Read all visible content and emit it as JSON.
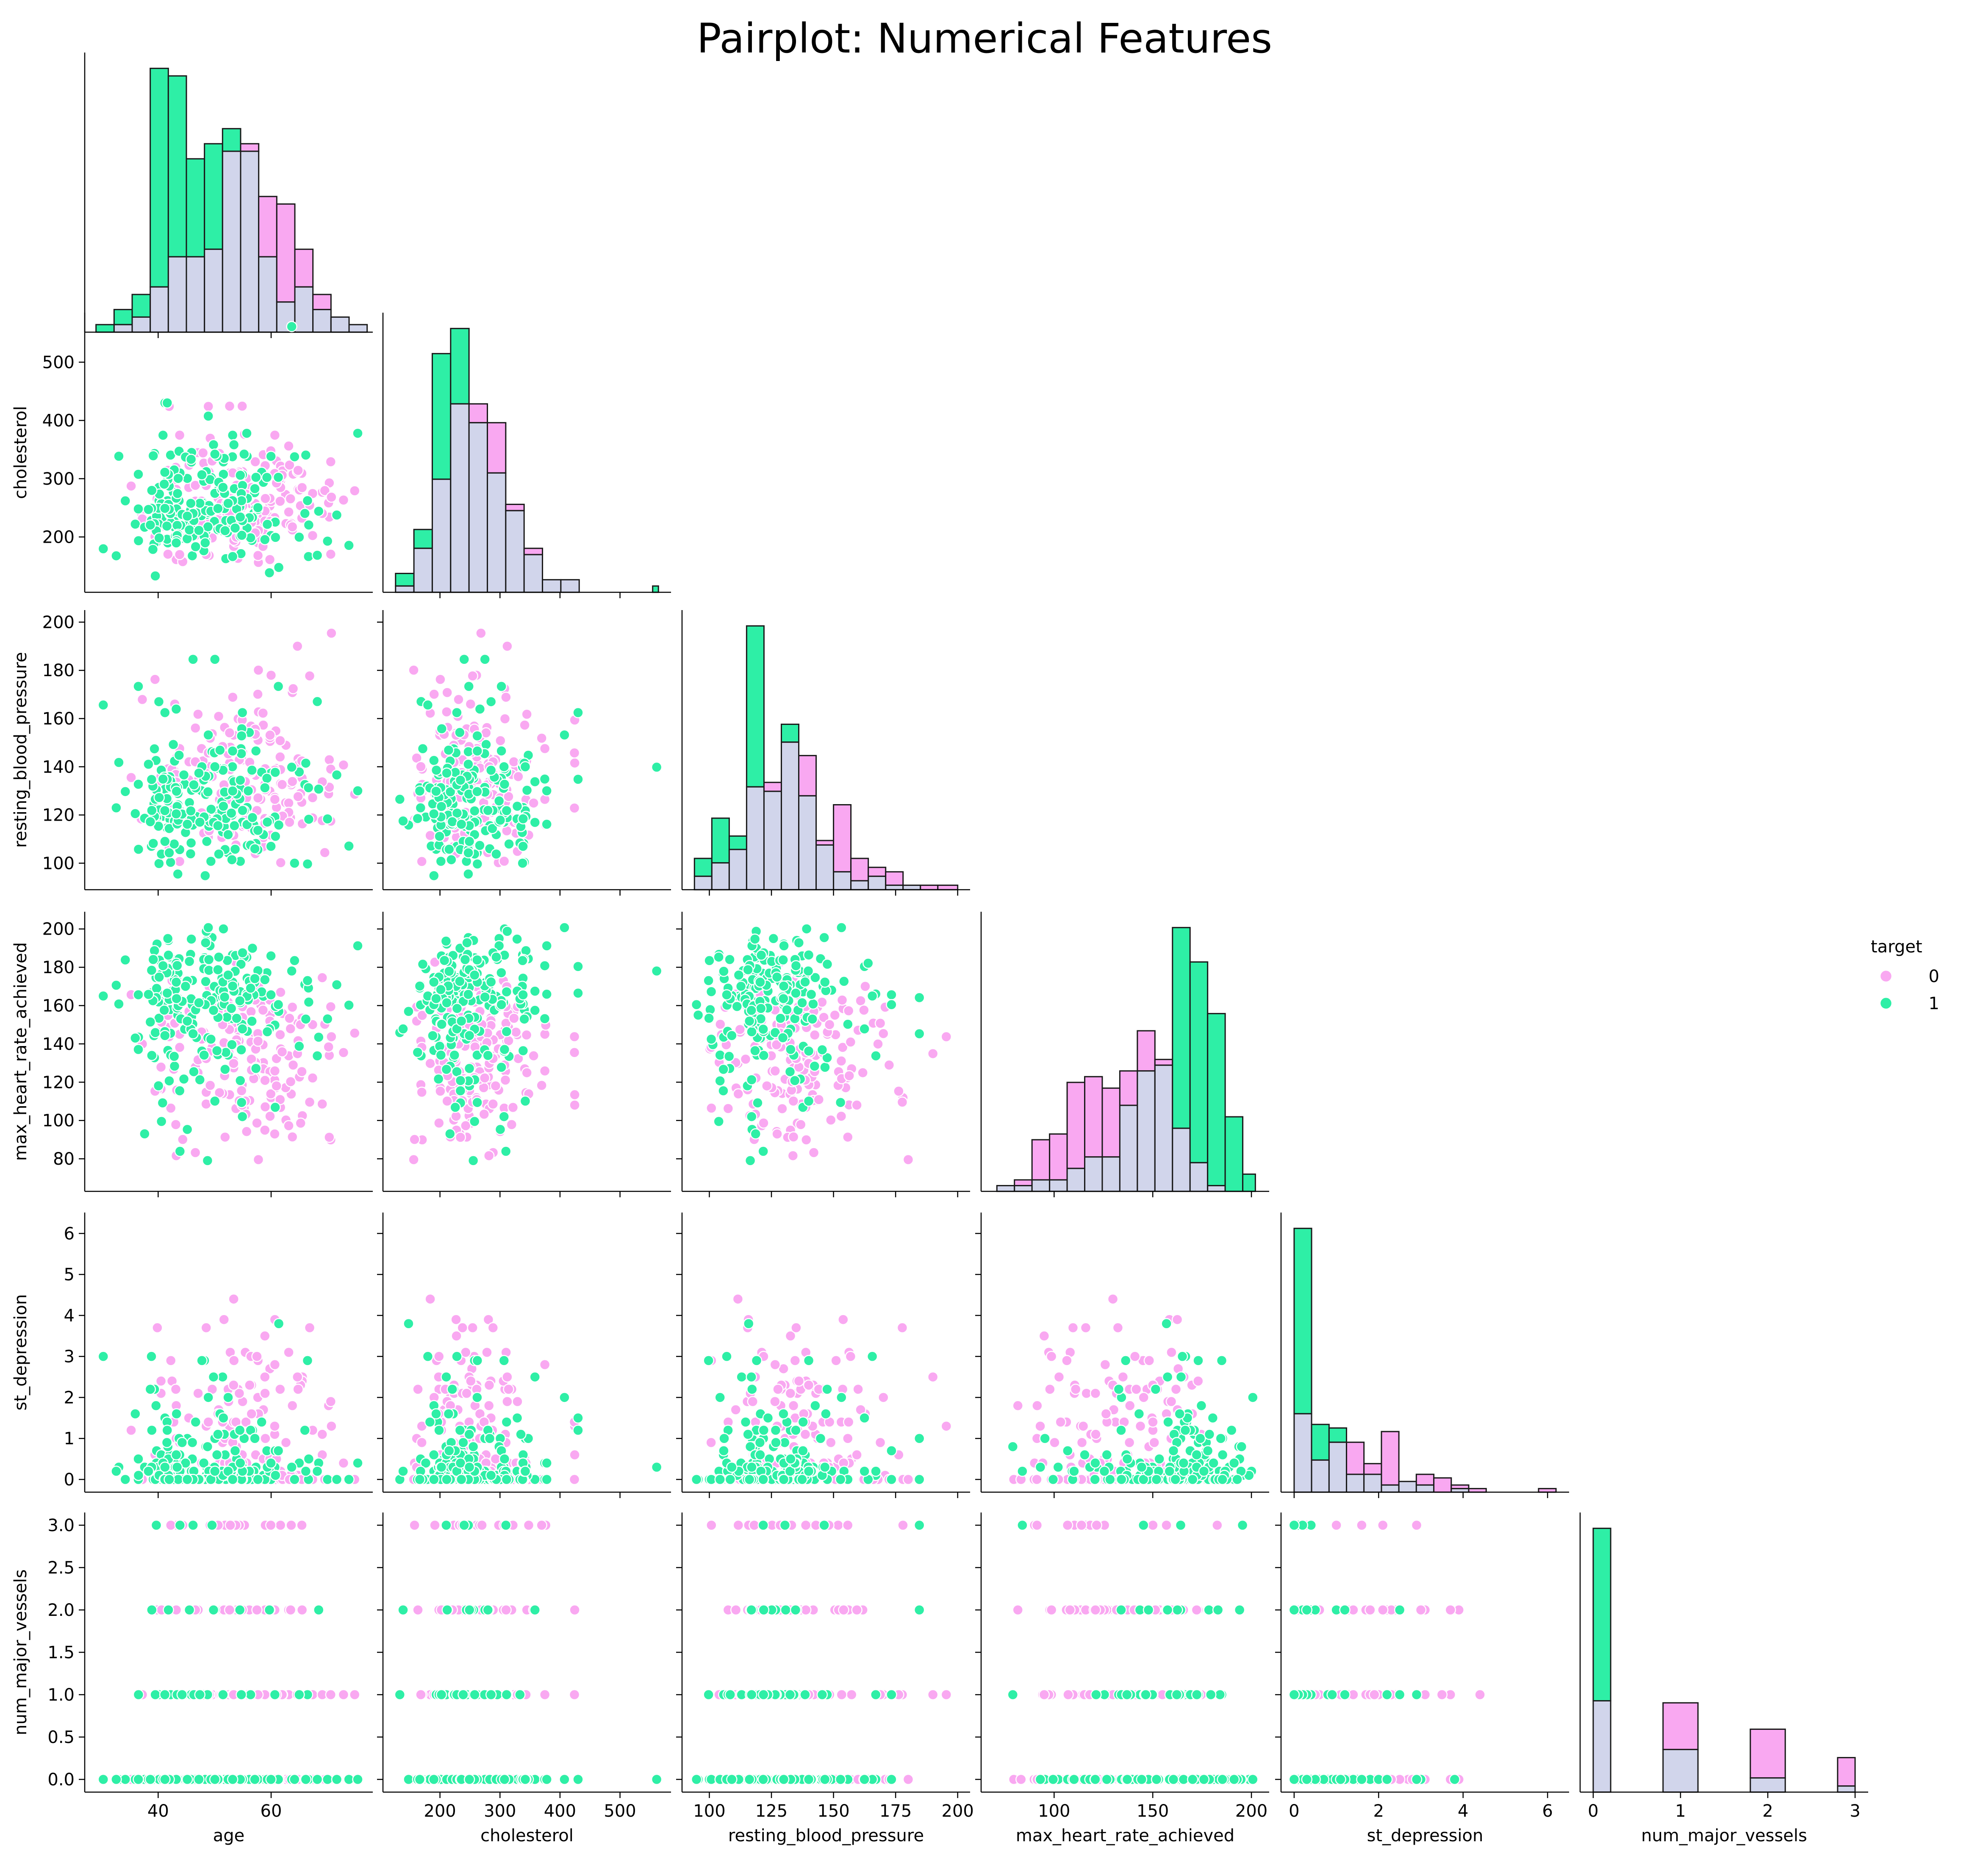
{
  "chart_data": {
    "type": "scatter",
    "title": "Pairplot: Numerical Features",
    "variables": [
      "age",
      "cholesterol",
      "resting_blood_pressure",
      "max_heart_rate_achieved",
      "st_depression",
      "num_major_vessels"
    ],
    "hue": "target",
    "legend": {
      "title": "target",
      "entries": [
        "0",
        "1"
      ],
      "placement": "right"
    },
    "colors": {
      "0": "#F9A8F1",
      "1": "#2EEFA6",
      "overlap": "#D1D5EB",
      "edge": "#1a1a1a"
    },
    "ranges": {
      "age": [
        27,
        78
      ],
      "cholesterol": [
        105,
        585
      ],
      "resting_blood_pressure": [
        89,
        205
      ],
      "max_heart_rate_achieved": [
        63,
        209
      ],
      "st_depression": [
        -0.31,
        6.51
      ],
      "num_major_vessels": [
        -0.15,
        3.15
      ]
    },
    "ticks": {
      "age": [
        40,
        60
      ],
      "cholesterol": [
        200,
        300,
        400,
        500
      ],
      "resting_blood_pressure": [
        100,
        120,
        140,
        160,
        180,
        200
      ],
      "max_heart_rate_achieved": [
        80,
        100,
        120,
        140,
        160,
        180,
        200
      ],
      "st_depression": [
        0,
        1,
        2,
        3,
        4,
        5,
        6
      ],
      "num_major_vessels": [
        0.0,
        0.5,
        1.0,
        1.5,
        2.0,
        2.5,
        3.0
      ]
    },
    "tick_labels_x": {
      "age": [
        "40",
        "60"
      ],
      "cholesterol": [
        "200",
        "300",
        "400",
        "500"
      ],
      "resting_blood_pressure": [
        "100",
        "125",
        "150",
        "175",
        "200"
      ],
      "max_heart_rate_achieved": [
        "100",
        "150",
        "200"
      ],
      "st_depression": [
        "0",
        "2",
        "4",
        "6"
      ],
      "num_major_vessels": [
        "0",
        "1",
        "2",
        "3"
      ]
    },
    "tick_values_x": {
      "age": [
        40,
        60
      ],
      "cholesterol": [
        200,
        300,
        400,
        500
      ],
      "resting_blood_pressure": [
        100,
        125,
        150,
        175,
        200
      ],
      "max_heart_rate_achieved": [
        100,
        150,
        200
      ],
      "st_depression": [
        0,
        2,
        4,
        6
      ],
      "num_major_vessels": [
        0,
        1,
        2,
        3
      ]
    },
    "tick_labels_y": {
      "cholesterol": [
        "200",
        "300",
        "400",
        "500"
      ],
      "resting_blood_pressure": [
        "100",
        "120",
        "140",
        "160",
        "180",
        "200"
      ],
      "max_heart_rate_achieved": [
        "80",
        "100",
        "120",
        "140",
        "160",
        "180",
        "200"
      ],
      "st_depression": [
        "0",
        "1",
        "2",
        "3",
        "4",
        "5",
        "6"
      ],
      "num_major_vessels": [
        "0.0",
        "0.5",
        "1.0",
        "1.5",
        "2.0",
        "2.5",
        "3.0"
      ]
    },
    "histograms": {
      "age": {
        "edges": [
          29,
          32.2,
          35.4,
          38.6,
          41.8,
          45,
          48.2,
          51.4,
          54.6,
          57.8,
          61,
          64.2,
          67.4,
          70.6,
          73.8,
          77
        ],
        "target0": [
          0,
          1,
          2,
          6,
          10,
          10,
          11,
          24,
          25,
          18,
          17,
          11,
          5,
          2,
          1
        ],
        "target1": [
          1,
          3,
          5,
          35,
          34,
          23,
          25,
          27,
          24,
          10,
          4,
          6,
          3,
          2,
          1
        ]
      },
      "cholesterol": {
        "edges": [
          126,
          156.6,
          187.2,
          217.8,
          248.4,
          279,
          309.6,
          340.2,
          370.8,
          401.4,
          432,
          462.6,
          493.2,
          523.8,
          554.4,
          564
        ],
        "target0": [
          1,
          7,
          18,
          30,
          30,
          27,
          14,
          7,
          2,
          2,
          0,
          0,
          0,
          0,
          0
        ],
        "target1": [
          3,
          10,
          38,
          42,
          27,
          19,
          13,
          6,
          2,
          2,
          0,
          0,
          0,
          0,
          1
        ]
      },
      "resting_blood_pressure": {
        "edges": [
          94,
          101,
          108,
          115,
          122,
          129,
          136,
          143,
          150,
          157,
          164,
          171,
          178,
          185,
          192,
          200
        ],
        "target0": [
          3,
          6,
          9,
          23,
          24,
          33,
          30,
          11,
          19,
          7,
          5,
          4,
          1,
          1,
          1
        ],
        "target1": [
          7,
          16,
          12,
          59,
          22,
          37,
          21,
          10,
          4,
          2,
          3,
          1,
          1,
          0,
          0
        ]
      },
      "max_heart_rate_achieved": {
        "edges": [
          71,
          79.9,
          88.8,
          97.7,
          106.6,
          115.5,
          124.4,
          133.3,
          142.2,
          151.1,
          160,
          168.9,
          177.8,
          186.7,
          195.6,
          202
        ],
        "target0": [
          1,
          2,
          9,
          10,
          19,
          20,
          18,
          21,
          28,
          23,
          11,
          5,
          1,
          0,
          0
        ],
        "target1": [
          1,
          1,
          2,
          2,
          4,
          6,
          6,
          15,
          21,
          22,
          46,
          40,
          31,
          13,
          3
        ]
      },
      "st_depression": {
        "edges": [
          0,
          0.413,
          0.827,
          1.24,
          1.653,
          2.067,
          2.48,
          2.893,
          3.307,
          3.72,
          4.133,
          4.547,
          4.96,
          5.373,
          5.787,
          6.2
        ],
        "target0": [
          22,
          9,
          14,
          14,
          8,
          17,
          3,
          5,
          4,
          2,
          1,
          0,
          0,
          0,
          1
        ],
        "target1": [
          74,
          19,
          18,
          5,
          5,
          2,
          3,
          2,
          0,
          1,
          0,
          0,
          0,
          0,
          0
        ]
      },
      "num_major_vessels": {
        "edges": [
          0,
          0.2,
          0.8,
          1.2,
          1.8,
          2.2,
          2.8,
          3.0
        ],
        "target0": [
          45,
          0,
          44,
          0,
          31,
          0,
          17
        ],
        "target1": [
          130,
          0,
          21,
          0,
          7,
          0,
          3
        ]
      }
    }
  }
}
